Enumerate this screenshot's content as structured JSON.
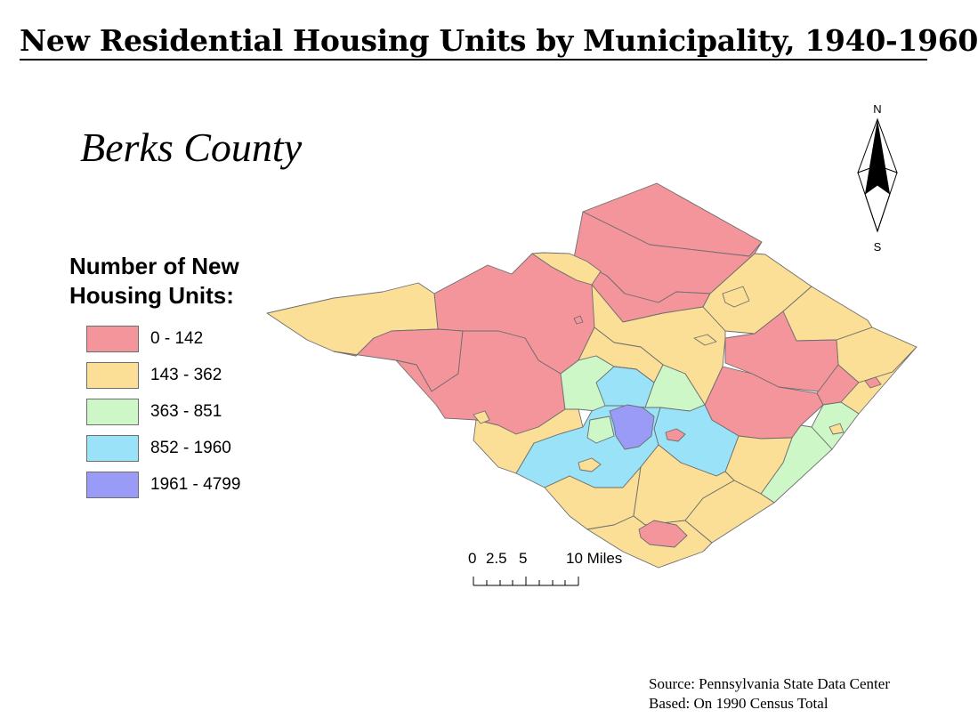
{
  "title": "New Residential Housing Units by Municipality, 1940-1960",
  "subtitle": "Berks County",
  "legend": {
    "title_line1": "Number of New",
    "title_line2": "Housing Units:",
    "classes": [
      {
        "label": "0 - 142",
        "color": "#f4949b"
      },
      {
        "label": "143 - 362",
        "color": "#fbdf96"
      },
      {
        "label": "363 - 851",
        "color": "#cdf7c7"
      },
      {
        "label": "852 - 1960",
        "color": "#9ae2f8"
      },
      {
        "label": "1961 - 4799",
        "color": "#9a9af7"
      }
    ]
  },
  "north_arrow": {
    "north_label": "N",
    "south_label": "S"
  },
  "scale_bar": {
    "labels": [
      "0",
      "2.5",
      "5",
      "10 Miles"
    ]
  },
  "source": {
    "line1": "Source: Pennsylvania State Data Center",
    "line2": "Based: On 1990 Census Total"
  },
  "colors": {
    "outline": "#6e6e6e",
    "text": "#000000",
    "background": "#ffffff"
  }
}
